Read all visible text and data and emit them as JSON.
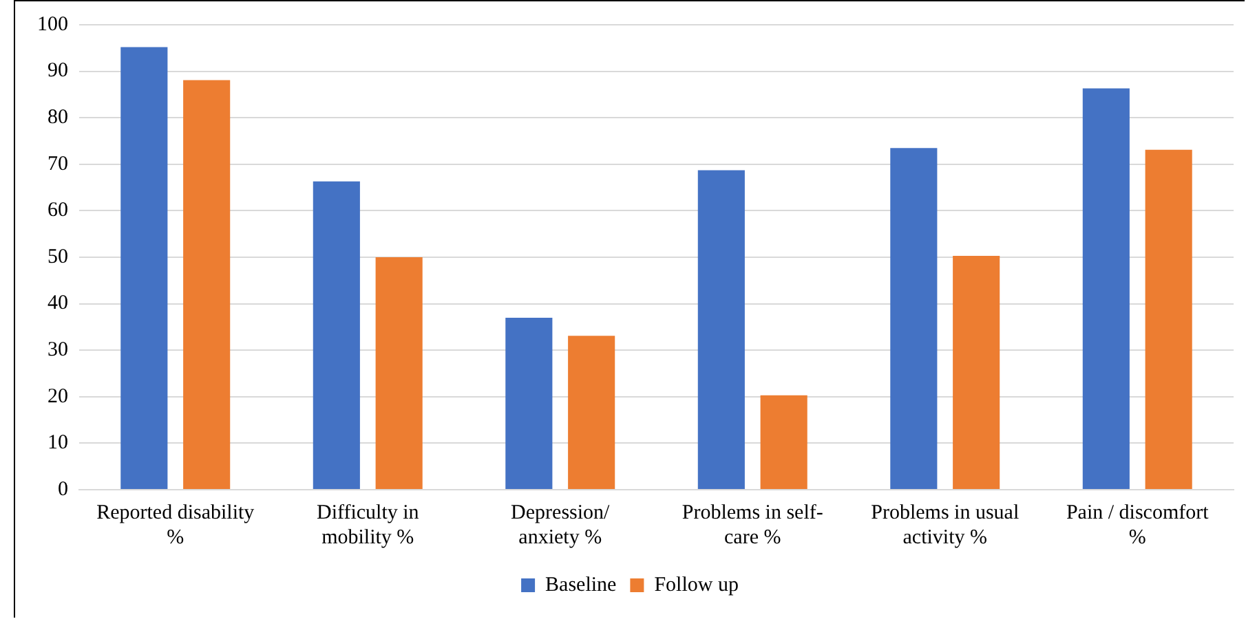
{
  "chart_data": {
    "type": "bar",
    "categories": [
      "Reported disability %",
      "Difficulty in mobility %",
      "Depression/ anxiety %",
      "Problems in self-care %",
      "Problems in usual activity %",
      "Pain / discomfort %"
    ],
    "series": [
      {
        "name": "Baseline",
        "color": "#4472c4",
        "values": [
          95.2,
          66.3,
          37,
          68.7,
          73.5,
          86.3
        ]
      },
      {
        "name": "Follow up",
        "color": "#ed7d31",
        "values": [
          88.1,
          50,
          33.1,
          20.3,
          50.3,
          73.1
        ]
      }
    ],
    "ylim": [
      0,
      100
    ],
    "yticks": [
      0,
      10,
      20,
      30,
      40,
      50,
      60,
      70,
      80,
      90,
      100
    ],
    "grid": "y",
    "legend": "bottom"
  }
}
